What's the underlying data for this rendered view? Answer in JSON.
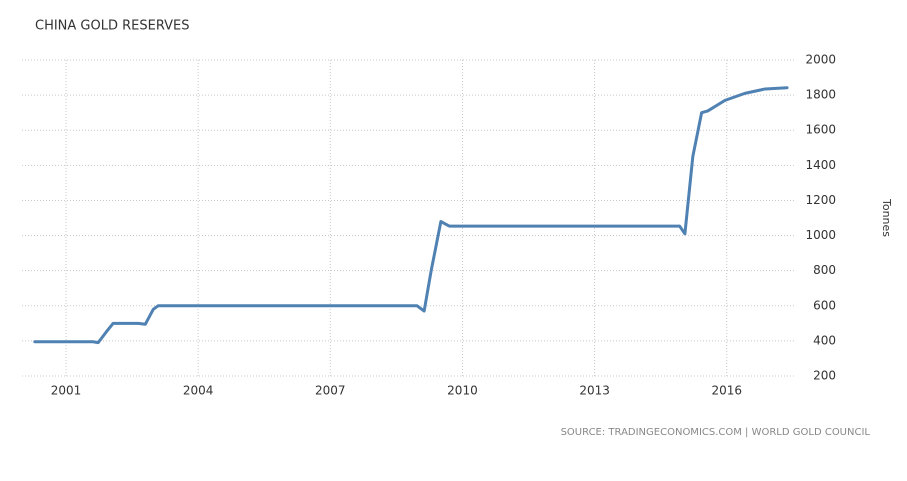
{
  "chart_data": {
    "type": "line",
    "title": "CHINA GOLD RESERVES",
    "ylabel": "Tonnes",
    "source": "SOURCE: TRADINGECONOMICS.COM | WORLD GOLD COUNCIL",
    "x": [
      2000.29,
      2001.61,
      2001.73,
      2001.91,
      2002.07,
      2002.64,
      2002.8,
      2002.98,
      2003.09,
      2008.97,
      2009.13,
      2009.29,
      2009.51,
      2009.7,
      2014.93,
      2015.05,
      2015.23,
      2015.43,
      2015.57,
      2015.96,
      2016.41,
      2016.87,
      2017.37
    ],
    "series": [
      {
        "name": "China Gold Reserves",
        "color": "#4f81b3",
        "values": [
          395,
          395,
          390,
          450,
          500,
          500,
          495,
          580,
          600,
          600,
          570,
          800,
          1080,
          1054,
          1054,
          1010,
          1450,
          1700,
          1710,
          1770,
          1810,
          1835,
          1842
        ]
      }
    ],
    "xlim": [
      2000,
      2017.55
    ],
    "xticks": [
      2001,
      2004,
      2007,
      2010,
      2013,
      2016
    ],
    "ylim": [
      200,
      2000
    ],
    "yticks": [
      200,
      400,
      600,
      800,
      1000,
      1200,
      1400,
      1600,
      1800,
      2000
    ],
    "grid": true
  }
}
